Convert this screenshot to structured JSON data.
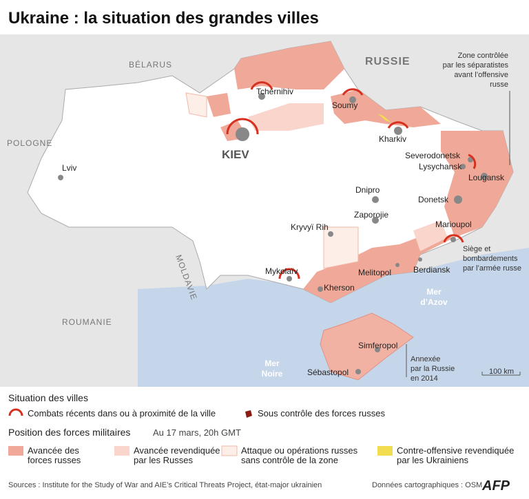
{
  "header": {
    "title": "Ukraine : la situation des grandes villes"
  },
  "map": {
    "countries": [
      {
        "label": "BÉLARUS"
      },
      {
        "label": "RUSSIE"
      },
      {
        "label": "POLOGNE"
      },
      {
        "label": "MOLDAVIE"
      },
      {
        "label": "ROUMANIE"
      }
    ],
    "seas": [
      {
        "lines": [
          "Mer",
          "d’Azov"
        ]
      },
      {
        "lines": [
          "Mer",
          "Noire"
        ]
      }
    ],
    "cities": [
      {
        "label": "Tchernihiv"
      },
      {
        "label": "Soumy"
      },
      {
        "label": "Kharkiv"
      },
      {
        "label": "KIEV"
      },
      {
        "label": "Lviv"
      },
      {
        "label": "Severodonetsk"
      },
      {
        "label": "Lysychansk"
      },
      {
        "label": "Lougansk"
      },
      {
        "label": "Donetsk"
      },
      {
        "label": "Dnipro"
      },
      {
        "label": "Zaporojie"
      },
      {
        "label": "Kryvyï Rih"
      },
      {
        "label": "Marioupol"
      },
      {
        "label": "Mykolaïv"
      },
      {
        "label": "Kherson"
      },
      {
        "label": "Melitopol"
      },
      {
        "label": "Berdiansk"
      },
      {
        "label": "Simferopol"
      },
      {
        "label": "Sébastopol"
      }
    ],
    "annotations": [
      {
        "lines": [
          "Zone contrôlée",
          "par les séparatistes",
          "avant l’offensive",
          "russe"
        ]
      },
      {
        "lines": [
          "Siège et",
          "bombardements",
          "par l’armée russe"
        ]
      },
      {
        "lines": [
          "Annexée",
          "par la Russie",
          "en 2014"
        ]
      }
    ],
    "scale": "100 km"
  },
  "legend": {
    "cities_title": "Situation des villes",
    "cities_items": [
      "Combats récents dans ou à proximité de la ville",
      "Sous contrôle des forces russes"
    ],
    "forces_title": "Position des forces militaires",
    "date": "Au 17 mars, 20h GMT",
    "forces_items": [
      {
        "lines": [
          "Avancée des",
          "forces russes"
        ]
      },
      {
        "lines": [
          "Avancée revendiquée",
          "par les Russes"
        ]
      },
      {
        "lines": [
          "Attaque ou opérations russes",
          "sans contrôle de la zone"
        ]
      },
      {
        "lines": [
          "Contre-offensive revendiquée",
          "par les Ukrainiens"
        ]
      }
    ]
  },
  "footer": {
    "sources": "Sources : Institute for the Study of War and AIE’s Critical Threats Project, état-major ukrainien",
    "credits": "Données cartographiques : OSM",
    "logo": "AFP"
  }
}
